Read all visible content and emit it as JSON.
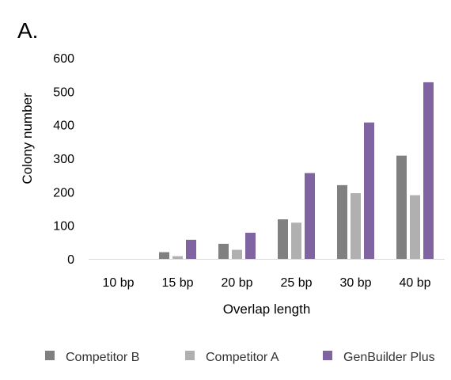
{
  "chart_data": {
    "type": "bar",
    "panel_label": "A.",
    "title": "",
    "xlabel": "Overlap length",
    "ylabel": "Colony number",
    "ylim": [
      0,
      600
    ],
    "yticks": [
      0,
      100,
      200,
      300,
      400,
      500,
      600
    ],
    "grid": false,
    "legend_placement": "bottom",
    "categories": [
      "10 bp",
      "15 bp",
      "20 bp",
      "25 bp",
      "30 bp",
      "40 bp"
    ],
    "series": [
      {
        "name": "Competitor B",
        "color": "#808080",
        "values": [
          0,
          20,
          45,
          118,
          220,
          308
        ]
      },
      {
        "name": "Competitor A",
        "color": "#b0b0b0",
        "values": [
          0,
          8,
          27,
          108,
          196,
          190
        ]
      },
      {
        "name": "GenBuilder Plus",
        "color": "#8064a2",
        "values": [
          0,
          57,
          78,
          256,
          407,
          527
        ]
      }
    ]
  }
}
